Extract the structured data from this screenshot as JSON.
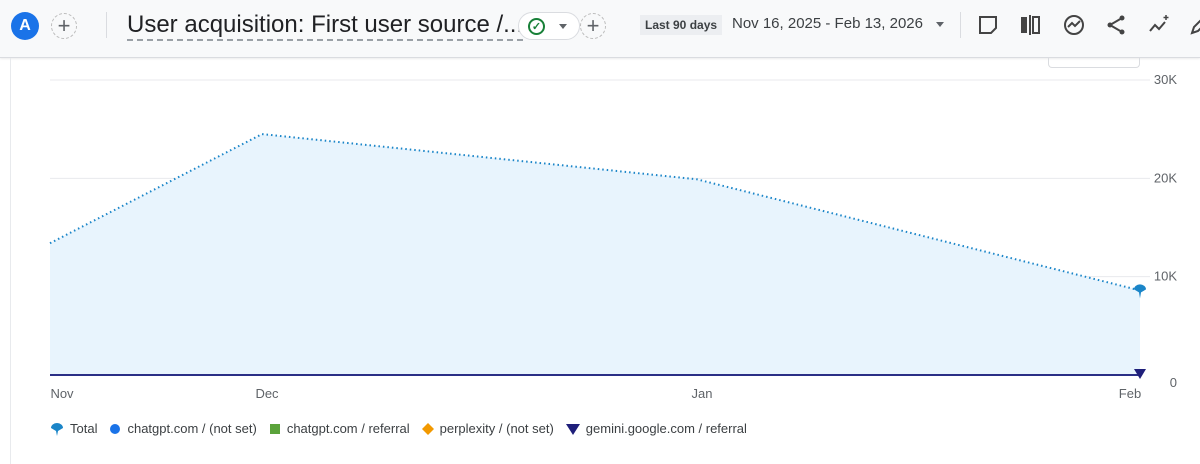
{
  "header": {
    "avatar_letter": "A",
    "title": "User acquisition: First user source /...",
    "date_chip": "Last 90 days",
    "date_range": "Nov 16, 2025 - Feb 13, 2026",
    "toolbar_icons": [
      "note-icon",
      "compare-icon",
      "insights-icon",
      "share-icon",
      "sparkle-trend-icon",
      "edit-icon"
    ]
  },
  "chart_data": {
    "type": "area",
    "categories": [
      "Nov",
      "Dec",
      "Jan",
      "Feb"
    ],
    "ylim": [
      0,
      30000
    ],
    "yticks": [
      "0",
      "10K",
      "20K",
      "30K"
    ],
    "grid": true,
    "legend_position": "bottom",
    "series": [
      {
        "name": "Total",
        "values": [
          13400,
          24500,
          19900,
          8600
        ],
        "color": "#1a85c8",
        "marker": "pin"
      },
      {
        "name": "chatgpt.com / (not set)",
        "values": [
          0,
          0,
          0,
          0
        ],
        "color": "#1a73e8",
        "marker": "circle"
      },
      {
        "name": "chatgpt.com / referral",
        "values": [
          0,
          0,
          0,
          0
        ],
        "color": "#5ba33b",
        "marker": "square"
      },
      {
        "name": "perplexity / (not set)",
        "values": [
          0,
          0,
          0,
          0
        ],
        "color": "#f29900",
        "marker": "diamond"
      },
      {
        "name": "gemini.google.com / referral",
        "values": [
          0,
          0,
          0,
          0
        ],
        "color": "#1f1f7a",
        "marker": "triangle-down"
      }
    ]
  }
}
